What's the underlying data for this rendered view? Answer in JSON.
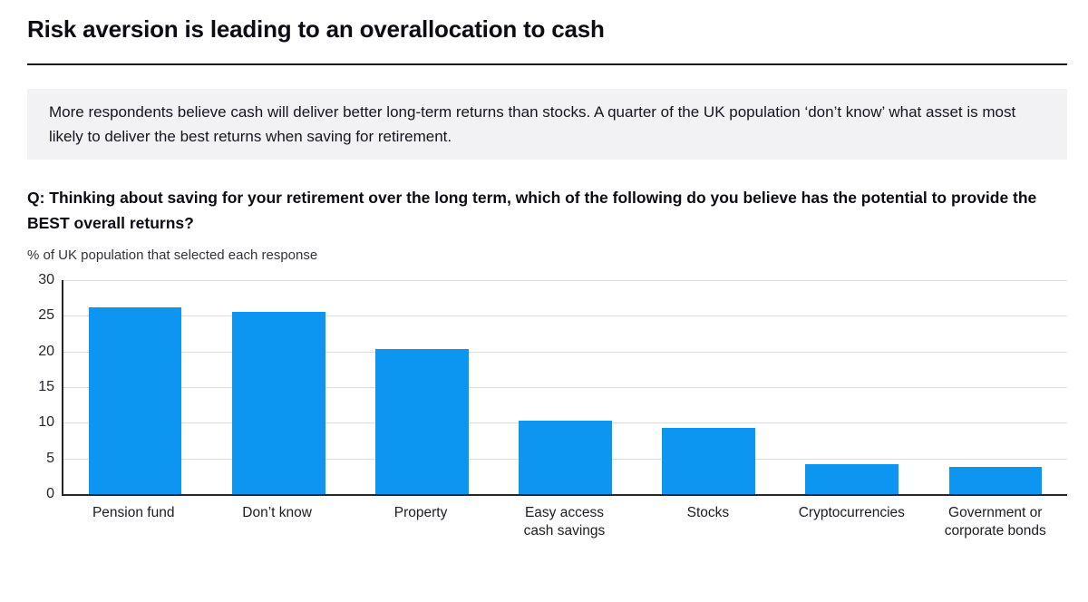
{
  "page": {
    "title": "Risk aversion is leading to an overallocation to cash",
    "callout": "More respondents believe cash will deliver better long-term returns than stocks. A quarter of the UK population ‘don’t know’ what asset is most likely to deliver the best returns when saving for retirement.",
    "question": "Q: Thinking about saving for your retirement over the long term, which of the following do you believe has the potential to provide the BEST overall returns?",
    "subtitle": "% of UK population that selected each response"
  },
  "colors": {
    "bar": "#0d95f2",
    "grid": "#dcdcdc",
    "axis": "#26262e",
    "callout_bg": "#f2f2f4"
  },
  "chart_data": {
    "type": "bar",
    "categories": [
      "Pension fund",
      "Don’t know",
      "Property",
      "Easy access\ncash savings",
      "Stocks",
      "Cryptocurrencies",
      "Government or\ncorporate bonds"
    ],
    "values": [
      26.2,
      25.5,
      20.4,
      10.3,
      9.3,
      4.2,
      3.8
    ],
    "title": "Q: Thinking about saving for your retirement over the long term, which of the following do you believe has the potential to provide the BEST overall returns?",
    "xlabel": "",
    "ylabel": "% of UK population that selected each response",
    "ylim": [
      0,
      30
    ],
    "yticks": [
      0,
      5,
      10,
      15,
      20,
      25,
      30
    ],
    "grid": true,
    "legend": false,
    "bar_color": "#0d95f2"
  }
}
